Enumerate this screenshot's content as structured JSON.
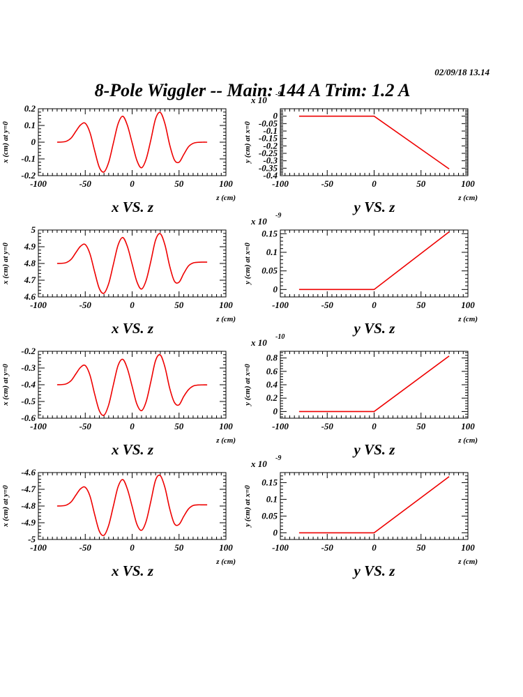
{
  "page": {
    "timestamp": "02/09/18   13.14",
    "title": "8-Pole Wiggler --  Main: 144 A    Trim: 1.2 A"
  },
  "styles": {
    "curve_color": "#ee0000",
    "axis_color": "#000000"
  },
  "chart_data": [
    {
      "type": "line",
      "title": "x VS. z",
      "xlabel": "z (cm)",
      "ylabel": "x (cm) at y=0",
      "multiplier": "",
      "xlim": [
        -100,
        100
      ],
      "ylim": [
        -0.2,
        0.2
      ],
      "xticks": [
        -100,
        -50,
        0,
        50,
        100
      ],
      "xtick_labels": [
        "-100",
        "-50",
        "0",
        "50",
        "100"
      ],
      "yticks": [
        -0.2,
        -0.1,
        0,
        0.1,
        0.2
      ],
      "ytick_labels": [
        "-0.2",
        "-0.1",
        "0",
        "0.1",
        "0.2"
      ],
      "series": [
        {
          "x": [
            -80,
            -75,
            -70,
            -65,
            -60,
            -55,
            -50,
            -45,
            -40,
            -35,
            -30,
            -25,
            -20,
            -15,
            -10,
            -5,
            0,
            5,
            10,
            15,
            20,
            25,
            30,
            35,
            40,
            45,
            50,
            55,
            60,
            65,
            70,
            75,
            80
          ],
          "y": [
            0,
            0.001,
            0.006,
            0.025,
            0.065,
            0.103,
            0.113,
            0.058,
            -0.05,
            -0.15,
            -0.178,
            -0.12,
            -0.005,
            0.11,
            0.155,
            0.1,
            -0.004,
            -0.108,
            -0.153,
            -0.1,
            0.015,
            0.14,
            0.178,
            0.11,
            -0.015,
            -0.105,
            -0.12,
            -0.074,
            -0.028,
            -0.007,
            -0.001,
            0,
            0
          ]
        }
      ]
    },
    {
      "type": "line",
      "title": "y VS. z",
      "xlabel": "z (cm)",
      "ylabel": "y (cm) at x=0",
      "multiplier": "x 10",
      "multiplier_exp": "-9",
      "xlim": [
        -100,
        100
      ],
      "ylim": [
        -0.4,
        0.05
      ],
      "xticks": [
        -100,
        -50,
        0,
        50,
        100
      ],
      "xtick_labels": [
        "-100",
        "-50",
        "0",
        "50",
        "100"
      ],
      "yticks": [
        -0.4,
        -0.35,
        -0.3,
        -0.25,
        -0.2,
        -0.15,
        -0.1,
        -0.05,
        0
      ],
      "ytick_labels": [
        "-0.4",
        "-0.35",
        "-0.3",
        "-0.25",
        "-0.2",
        "-0.15",
        "-0.1",
        "-0.05",
        "0"
      ],
      "series": [
        {
          "x": [
            -80,
            0,
            80
          ],
          "y": [
            0,
            0,
            -0.355
          ]
        }
      ]
    },
    {
      "type": "line",
      "title": "x VS. z",
      "xlabel": "z (cm)",
      "ylabel": "x (cm) at y=0",
      "multiplier": "",
      "xlim": [
        -100,
        100
      ],
      "ylim": [
        4.6,
        5.0
      ],
      "xticks": [
        -100,
        -50,
        0,
        50,
        100
      ],
      "xtick_labels": [
        "-100",
        "-50",
        "0",
        "50",
        "100"
      ],
      "yticks": [
        4.6,
        4.7,
        4.8,
        4.9,
        5.0
      ],
      "ytick_labels": [
        "4.6",
        "4.7",
        "4.8",
        "4.9",
        "5"
      ],
      "series": [
        {
          "x": [
            -80,
            -75,
            -70,
            -65,
            -60,
            -55,
            -50,
            -45,
            -40,
            -35,
            -30,
            -25,
            -20,
            -15,
            -10,
            -5,
            0,
            5,
            10,
            15,
            20,
            25,
            30,
            35,
            40,
            45,
            50,
            55,
            60,
            65,
            70,
            75,
            80
          ],
          "y": [
            4.8,
            4.801,
            4.806,
            4.825,
            4.865,
            4.903,
            4.913,
            4.858,
            4.75,
            4.65,
            4.622,
            4.68,
            4.795,
            4.91,
            4.955,
            4.9,
            4.796,
            4.692,
            4.647,
            4.7,
            4.815,
            4.94,
            4.978,
            4.91,
            4.785,
            4.695,
            4.688,
            4.74,
            4.785,
            4.803,
            4.807,
            4.808,
            4.808
          ]
        }
      ]
    },
    {
      "type": "line",
      "title": "y VS. z",
      "xlabel": "z (cm)",
      "ylabel": "y (cm) at x=0",
      "multiplier": "x 10",
      "multiplier_exp": "-9",
      "xlim": [
        -100,
        100
      ],
      "ylim": [
        -0.02,
        0.16
      ],
      "xticks": [
        -100,
        -50,
        0,
        50,
        100
      ],
      "xtick_labels": [
        "-100",
        "-50",
        "0",
        "50",
        "100"
      ],
      "yticks": [
        0,
        0.05,
        0.1,
        0.15
      ],
      "ytick_labels": [
        "0",
        "0.05",
        "0.1",
        "0.15"
      ],
      "series": [
        {
          "x": [
            -80,
            0,
            80
          ],
          "y": [
            0,
            0,
            0.155
          ]
        }
      ]
    },
    {
      "type": "line",
      "title": "x VS. z",
      "xlabel": "z (cm)",
      "ylabel": "x (cm) at y=0",
      "multiplier": "",
      "xlim": [
        -100,
        100
      ],
      "ylim": [
        -0.6,
        -0.2
      ],
      "xticks": [
        -100,
        -50,
        0,
        50,
        100
      ],
      "xtick_labels": [
        "-100",
        "-50",
        "0",
        "50",
        "100"
      ],
      "yticks": [
        -0.6,
        -0.5,
        -0.4,
        -0.3,
        -0.2
      ],
      "ytick_labels": [
        "-0.6",
        "-0.5",
        "-0.4",
        "-0.3",
        "-0.2"
      ],
      "series": [
        {
          "x": [
            -80,
            -75,
            -70,
            -65,
            -60,
            -55,
            -50,
            -45,
            -40,
            -35,
            -30,
            -25,
            -20,
            -15,
            -10,
            -5,
            0,
            5,
            10,
            15,
            20,
            25,
            30,
            35,
            40,
            45,
            50,
            55,
            60,
            65,
            70,
            75,
            80
          ],
          "y": [
            -0.4,
            -0.399,
            -0.394,
            -0.375,
            -0.335,
            -0.296,
            -0.285,
            -0.342,
            -0.455,
            -0.555,
            -0.582,
            -0.52,
            -0.4,
            -0.285,
            -0.248,
            -0.305,
            -0.41,
            -0.515,
            -0.555,
            -0.5,
            -0.38,
            -0.255,
            -0.222,
            -0.295,
            -0.42,
            -0.505,
            -0.52,
            -0.47,
            -0.43,
            -0.408,
            -0.402,
            -0.401,
            -0.401
          ]
        }
      ]
    },
    {
      "type": "line",
      "title": "y VS. z",
      "xlabel": "z (cm)",
      "ylabel": "y (cm) at x=0",
      "multiplier": "x 10",
      "multiplier_exp": "-10",
      "xlim": [
        -100,
        100
      ],
      "ylim": [
        -0.1,
        0.9
      ],
      "xticks": [
        -100,
        -50,
        0,
        50,
        100
      ],
      "xtick_labels": [
        "-100",
        "-50",
        "0",
        "50",
        "100"
      ],
      "yticks": [
        0,
        0.2,
        0.4,
        0.6,
        0.8
      ],
      "ytick_labels": [
        "0",
        "0.2",
        "0.4",
        "0.6",
        "0.8"
      ],
      "series": [
        {
          "x": [
            -80,
            0,
            80
          ],
          "y": [
            0,
            0,
            0.83
          ]
        }
      ]
    },
    {
      "type": "line",
      "title": "x VS. z",
      "xlabel": "z (cm)",
      "ylabel": "x (cm) at y=0",
      "multiplier": "",
      "xlim": [
        -100,
        100
      ],
      "ylim": [
        -5.0,
        -4.6
      ],
      "xticks": [
        -100,
        -50,
        0,
        50,
        100
      ],
      "xtick_labels": [
        "-100",
        "-50",
        "0",
        "50",
        "100"
      ],
      "yticks": [
        -5.0,
        -4.9,
        -4.8,
        -4.7,
        -4.6
      ],
      "ytick_labels": [
        "-5",
        "-4.9",
        "-4.8",
        "-4.7",
        "-4.6"
      ],
      "series": [
        {
          "x": [
            -80,
            -75,
            -70,
            -65,
            -60,
            -55,
            -50,
            -45,
            -40,
            -35,
            -30,
            -25,
            -20,
            -15,
            -10,
            -5,
            0,
            5,
            10,
            15,
            20,
            25,
            30,
            35,
            40,
            45,
            50,
            55,
            60,
            65,
            70,
            75,
            80
          ],
          "y": [
            -4.8,
            -4.799,
            -4.794,
            -4.775,
            -4.735,
            -4.697,
            -4.688,
            -4.74,
            -4.85,
            -4.95,
            -4.975,
            -4.915,
            -4.8,
            -4.685,
            -4.642,
            -4.7,
            -4.803,
            -4.908,
            -4.945,
            -4.89,
            -4.77,
            -4.645,
            -4.618,
            -4.69,
            -4.815,
            -4.905,
            -4.91,
            -4.862,
            -4.818,
            -4.797,
            -4.793,
            -4.793,
            -4.793
          ]
        }
      ]
    },
    {
      "type": "line",
      "title": "y VS. z",
      "xlabel": "z (cm)",
      "ylabel": "y (cm) at x=0",
      "multiplier": "x 10",
      "multiplier_exp": "-9",
      "xlim": [
        -100,
        100
      ],
      "ylim": [
        -0.02,
        0.18
      ],
      "xticks": [
        -100,
        -50,
        0,
        50,
        100
      ],
      "xtick_labels": [
        "-100",
        "-50",
        "0",
        "50",
        "100"
      ],
      "yticks": [
        0,
        0.05,
        0.1,
        0.15
      ],
      "ytick_labels": [
        "0",
        "0.05",
        "0.1",
        "0.15"
      ],
      "series": [
        {
          "x": [
            -80,
            0,
            80
          ],
          "y": [
            0,
            0,
            0.168
          ]
        }
      ]
    }
  ]
}
